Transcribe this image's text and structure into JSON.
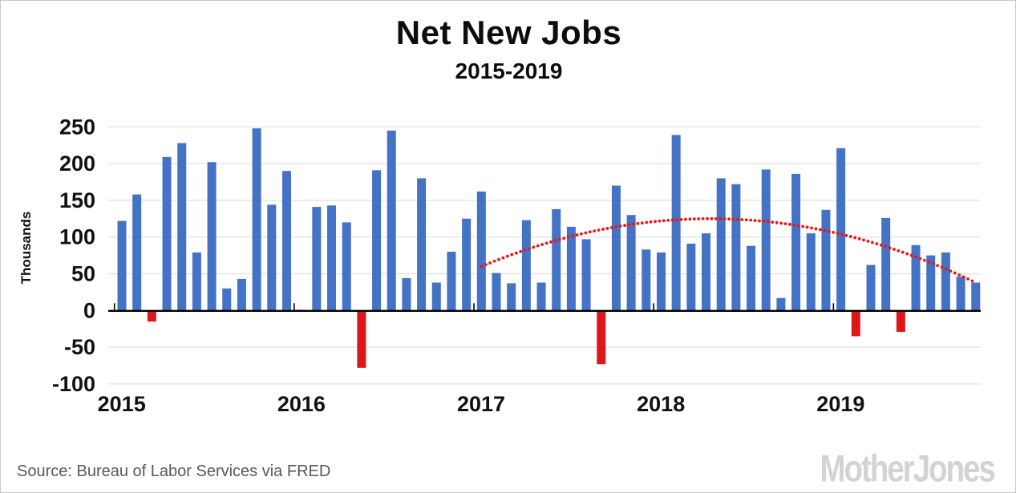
{
  "title": "Net New Jobs",
  "subtitle": "2015-2019",
  "y_axis_label": "Thousands",
  "source_text": "Source: Bureau of Labor Services via FRED",
  "logo_text": "MotherJones",
  "colors": {
    "bar_positive": "#4472c4",
    "bar_negative": "#dd1717",
    "trendline": "#f01414",
    "gridline": "#e4e4e4",
    "axis": "#000000",
    "tick_label": "#111111",
    "source_text": "#595959",
    "logo": "#d3d3d3",
    "background": "#ffffff"
  },
  "chart_data": {
    "type": "bar",
    "title": "Net New Jobs",
    "subtitle": "2015-2019",
    "ylabel": "Thousands",
    "ylim": [
      -100,
      250
    ],
    "y_ticks": [
      250,
      200,
      150,
      100,
      50,
      0,
      -50,
      -100
    ],
    "x_tick_labels": [
      "2015",
      "2016",
      "2017",
      "2018",
      "2019"
    ],
    "grid": true,
    "legend": false,
    "units": "thousands of jobs",
    "x": [
      "2015-01",
      "2015-02",
      "2015-03",
      "2015-04",
      "2015-05",
      "2015-06",
      "2015-07",
      "2015-08",
      "2015-09",
      "2015-10",
      "2015-11",
      "2015-12",
      "2016-01",
      "2016-02",
      "2016-03",
      "2016-04",
      "2016-05",
      "2016-06",
      "2016-07",
      "2016-08",
      "2016-09",
      "2016-10",
      "2016-11",
      "2016-12",
      "2017-01",
      "2017-02",
      "2017-03",
      "2017-04",
      "2017-05",
      "2017-06",
      "2017-07",
      "2017-08",
      "2017-09",
      "2017-10",
      "2017-11",
      "2017-12",
      "2018-01",
      "2018-02",
      "2018-03",
      "2018-04",
      "2018-05",
      "2018-06",
      "2018-07",
      "2018-08",
      "2018-09",
      "2018-10",
      "2018-11",
      "2018-12",
      "2019-01",
      "2019-02",
      "2019-03",
      "2019-04",
      "2019-05",
      "2019-06",
      "2019-07",
      "2019-08",
      "2019-09",
      "2019-10"
    ],
    "values": [
      122,
      158,
      -14,
      209,
      228,
      79,
      202,
      30,
      43,
      248,
      144,
      190,
      1,
      141,
      143,
      120,
      -77,
      191,
      245,
      44,
      180,
      38,
      80,
      125,
      162,
      51,
      37,
      123,
      38,
      138,
      114,
      97,
      -72,
      170,
      130,
      83,
      79,
      239,
      91,
      105,
      180,
      172,
      88,
      192,
      17,
      186,
      105,
      137,
      221,
      -34,
      62,
      126,
      -28,
      89,
      75,
      79,
      46,
      38
    ],
    "trendline": {
      "style": "dotted",
      "x_start": "2017-01",
      "x_end": "2019-10",
      "values": [
        60.0,
        68.2,
        75.9,
        83.0,
        89.5,
        95.5,
        101.0,
        105.9,
        110.2,
        114.0,
        117.2,
        119.9,
        122.0,
        123.5,
        124.5,
        125.0,
        124.9,
        124.2,
        123.0,
        121.2,
        118.9,
        116.0,
        112.5,
        108.5,
        104.0,
        98.9,
        93.2,
        87.0,
        80.2,
        72.9,
        65.0,
        56.5,
        47.5,
        38.0
      ]
    }
  }
}
